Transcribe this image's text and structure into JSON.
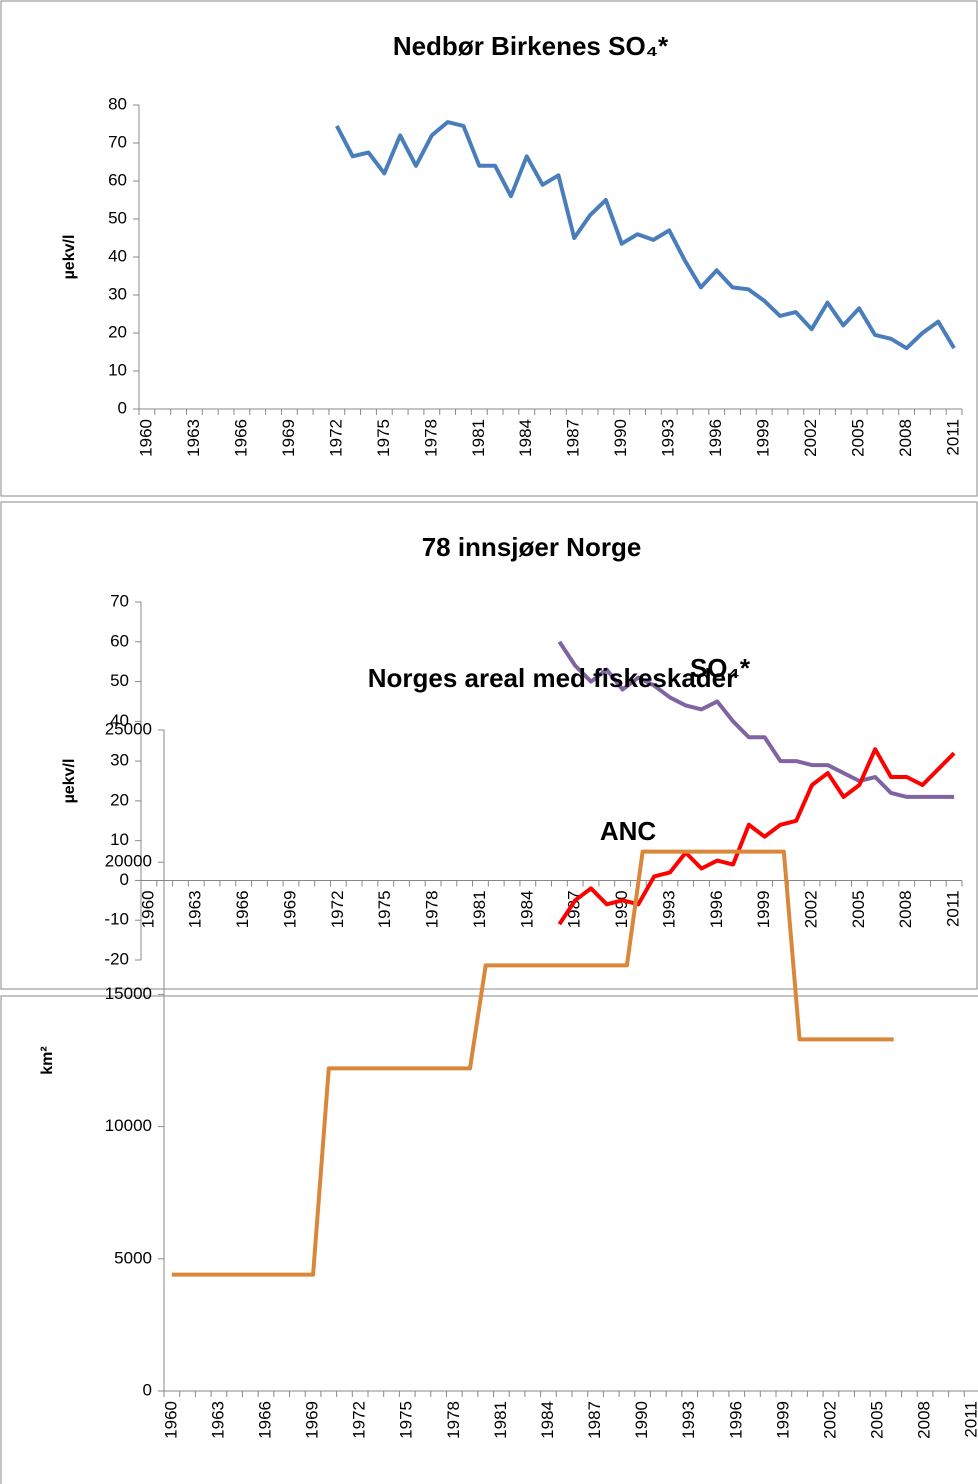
{
  "chart_data": [
    {
      "type": "line",
      "title": "Nedbør Birkenes SO₄*",
      "y_label": "µekv/l",
      "categories": [
        "1960",
        null,
        null,
        "1963",
        null,
        null,
        "1966",
        null,
        null,
        "1969",
        null,
        null,
        "1972",
        null,
        null,
        "1975",
        null,
        null,
        "1978",
        null,
        null,
        "1981",
        null,
        null,
        "1984",
        null,
        null,
        "1987",
        null,
        null,
        "1990",
        null,
        null,
        "1993",
        null,
        null,
        "1996",
        null,
        null,
        "1999",
        null,
        null,
        "2002",
        null,
        null,
        "2005",
        null,
        null,
        "2008",
        null,
        null,
        "2011"
      ],
      "series": [
        {
          "color": "#4a7ebb",
          "values": [
            null,
            null,
            null,
            null,
            null,
            null,
            null,
            null,
            null,
            null,
            null,
            null,
            74.5,
            66.5,
            67.5,
            62,
            72,
            64,
            72,
            75.5,
            74.5,
            64,
            64,
            56,
            66.5,
            59,
            61.5,
            45,
            51,
            55,
            43.5,
            46,
            44.5,
            47,
            39,
            32,
            36.5,
            32,
            31.5,
            28.5,
            24.5,
            25.5,
            21,
            28,
            22,
            26.5,
            19.5,
            18.5,
            16,
            20,
            23,
            16
          ]
        }
      ],
      "ylim": [
        0,
        80
      ],
      "yticks": [
        0,
        10,
        20,
        30,
        40,
        50,
        60,
        70,
        80
      ]
    },
    {
      "type": "line",
      "title": "78 innsjøer Norge",
      "y_label": "µekv/l",
      "categories": [
        "1960",
        null,
        null,
        "1963",
        null,
        null,
        "1966",
        null,
        null,
        "1969",
        null,
        null,
        "1972",
        null,
        null,
        "1975",
        null,
        null,
        "1978",
        null,
        null,
        "1981",
        null,
        null,
        "1984",
        null,
        null,
        "1987",
        null,
        null,
        "1990",
        null,
        null,
        "1993",
        null,
        null,
        "1996",
        null,
        null,
        "1999",
        null,
        null,
        "2002",
        null,
        null,
        "2005",
        null,
        null,
        "2008",
        null,
        null,
        "2011"
      ],
      "series": [
        {
          "name": "SO₄*",
          "color": "#8064a2",
          "values": [
            null,
            null,
            null,
            null,
            null,
            null,
            null,
            null,
            null,
            null,
            null,
            null,
            null,
            null,
            null,
            null,
            null,
            null,
            null,
            null,
            null,
            null,
            null,
            null,
            null,
            null,
            60,
            54,
            50,
            53,
            48,
            51,
            49,
            46,
            44,
            43,
            45,
            40,
            36,
            36,
            30,
            30,
            29,
            29,
            27,
            25,
            26,
            22,
            21,
            21,
            21,
            21
          ]
        },
        {
          "name": "ANC",
          "color": "#ff0000",
          "values": [
            null,
            null,
            null,
            null,
            null,
            null,
            null,
            null,
            null,
            null,
            null,
            null,
            null,
            null,
            null,
            null,
            null,
            null,
            null,
            null,
            null,
            null,
            null,
            null,
            null,
            null,
            -11,
            -5,
            -2,
            -6,
            -5,
            -6,
            1,
            2,
            7,
            3,
            5,
            4,
            14,
            11,
            14,
            15,
            24,
            27,
            21,
            24,
            33,
            26,
            26,
            24,
            28,
            32
          ]
        }
      ],
      "ylim": [
        -20,
        70
      ],
      "yticks": [
        -20,
        -10,
        0,
        10,
        20,
        30,
        40,
        50,
        60,
        70
      ]
    },
    {
      "type": "line",
      "title": "Norges areal med fiskeskader",
      "y_label": "km²",
      "categories": [
        "1960",
        null,
        null,
        "1963",
        null,
        null,
        "1966",
        null,
        null,
        "1969",
        null,
        null,
        "1972",
        null,
        null,
        "1975",
        null,
        null,
        "1978",
        null,
        null,
        "1981",
        null,
        null,
        "1984",
        null,
        null,
        "1987",
        null,
        null,
        "1990",
        null,
        null,
        "1993",
        null,
        null,
        "1996",
        null,
        null,
        "1999",
        null,
        null,
        "2002",
        null,
        null,
        "2005",
        null,
        null,
        "2008",
        null,
        null,
        "2011"
      ],
      "series": [
        {
          "color": "#d9873b",
          "values": [
            4400,
            4400,
            4400,
            4400,
            4400,
            4400,
            4400,
            4400,
            4400,
            4400,
            12200,
            12200,
            12200,
            12200,
            12200,
            12200,
            12200,
            12200,
            12200,
            12200,
            16100,
            16100,
            16100,
            16100,
            16100,
            16100,
            16100,
            16100,
            16100,
            16100,
            20400,
            20400,
            20400,
            20400,
            20400,
            20400,
            20400,
            20400,
            20400,
            20400,
            13300,
            13300,
            13300,
            13300,
            13300,
            13300,
            13300,
            null,
            null,
            null,
            null,
            null
          ]
        }
      ],
      "ylim": [
        0,
        25000
      ],
      "yticks": [
        0,
        5000,
        10000,
        15000,
        20000,
        25000
      ]
    }
  ]
}
